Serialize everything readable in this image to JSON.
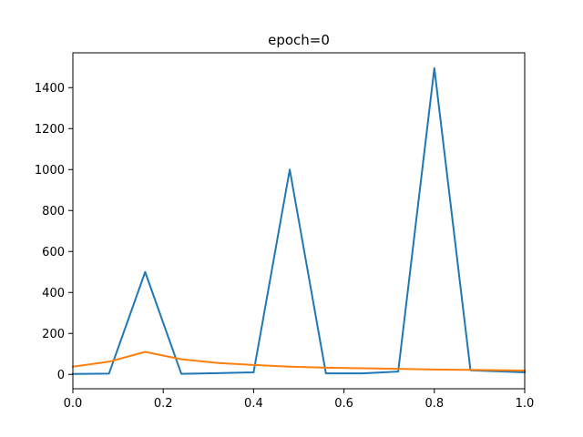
{
  "chart_data": {
    "type": "line",
    "title": "epoch=0",
    "xlabel": "",
    "ylabel": "",
    "xlim": [
      0.0,
      1.0
    ],
    "ylim": [
      -70,
      1570
    ],
    "grid": false,
    "x_ticks": [
      0.0,
      0.2,
      0.4,
      0.6,
      0.8,
      1.0
    ],
    "x_tick_labels": [
      "0.0",
      "0.2",
      "0.4",
      "0.6",
      "0.8",
      "1.0"
    ],
    "y_ticks": [
      0,
      200,
      400,
      600,
      800,
      1000,
      1200,
      1400
    ],
    "y_tick_labels": [
      "0",
      "200",
      "400",
      "600",
      "800",
      "1000",
      "1200",
      "1400"
    ],
    "series": [
      {
        "color": "#1f77b4",
        "x": [
          0.0,
          0.08,
          0.16,
          0.24,
          0.32,
          0.4,
          0.48,
          0.56,
          0.64,
          0.72,
          0.8,
          0.88,
          1.0
        ],
        "y": [
          2,
          4,
          500,
          3,
          6,
          10,
          1000,
          5,
          5,
          14,
          1495,
          20,
          10
        ]
      },
      {
        "color": "#ff7f0e",
        "x": [
          0.0,
          0.08,
          0.16,
          0.24,
          0.32,
          0.4,
          0.48,
          0.56,
          0.64,
          0.72,
          0.8,
          0.88,
          1.0
        ],
        "y": [
          38,
          62,
          110,
          74,
          56,
          46,
          38,
          33,
          30,
          27,
          24,
          22,
          19
        ]
      }
    ]
  }
}
